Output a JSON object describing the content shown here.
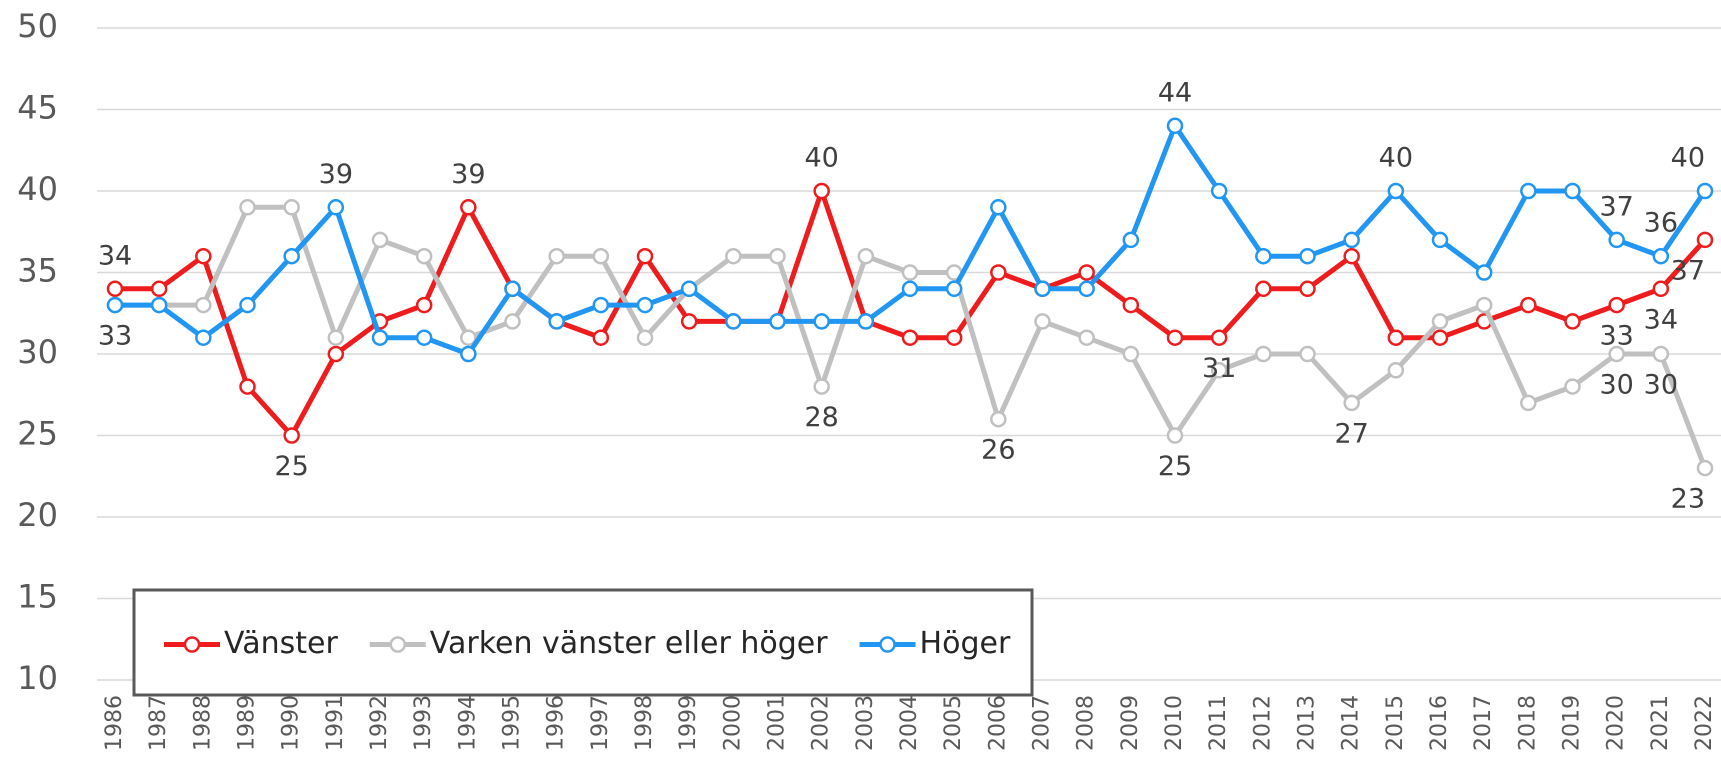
{
  "chart_data": {
    "type": "line",
    "categories": [
      "1986",
      "1987",
      "1988",
      "1989",
      "1990",
      "1991",
      "1992",
      "1993",
      "1994",
      "1995",
      "1996",
      "1997",
      "1998",
      "1999",
      "2000",
      "2001",
      "2002",
      "2003",
      "2004",
      "2005",
      "2006",
      "2007",
      "2008",
      "2009",
      "2010",
      "2011",
      "2012",
      "2013",
      "2014",
      "2015",
      "2016",
      "2017",
      "2018",
      "2019",
      "2020",
      "2021",
      "2022"
    ],
    "series": [
      {
        "name": "Vänster",
        "color": "#ee1c1c",
        "values": [
          34,
          34,
          36,
          28,
          25,
          30,
          32,
          33,
          39,
          34,
          32,
          31,
          36,
          32,
          32,
          32,
          40,
          32,
          31,
          31,
          35,
          34,
          35,
          33,
          31,
          31,
          34,
          34,
          36,
          31,
          31,
          32,
          33,
          32,
          33,
          34,
          37
        ],
        "value_labels": [
          "34",
          null,
          null,
          null,
          "25",
          null,
          null,
          null,
          "39",
          null,
          null,
          null,
          null,
          null,
          null,
          null,
          "40",
          null,
          null,
          null,
          null,
          null,
          null,
          null,
          null,
          "31",
          null,
          null,
          null,
          null,
          null,
          null,
          null,
          null,
          "33",
          "34",
          "37"
        ]
      },
      {
        "name": "Varken vänster eller höger",
        "color": "#c0c0c0",
        "values": [
          33,
          33,
          33,
          39,
          39,
          31,
          37,
          36,
          31,
          32,
          36,
          36,
          31,
          34,
          36,
          36,
          28,
          36,
          35,
          35,
          26,
          32,
          31,
          30,
          25,
          29,
          30,
          30,
          27,
          29,
          32,
          33,
          27,
          28,
          30,
          30,
          23
        ],
        "value_labels": [
          "33",
          null,
          null,
          null,
          null,
          null,
          null,
          null,
          null,
          null,
          null,
          null,
          null,
          null,
          null,
          null,
          "28",
          null,
          null,
          null,
          "26",
          null,
          null,
          null,
          "25",
          null,
          null,
          null,
          "27",
          null,
          null,
          null,
          null,
          null,
          "30",
          "30",
          "23"
        ]
      },
      {
        "name": "Höger",
        "color": "#2196f3",
        "values": [
          33,
          33,
          31,
          33,
          36,
          39,
          31,
          31,
          30,
          34,
          32,
          33,
          33,
          34,
          32,
          32,
          32,
          32,
          34,
          34,
          39,
          34,
          34,
          37,
          44,
          40,
          36,
          36,
          37,
          40,
          37,
          35,
          40,
          40,
          37,
          36,
          40
        ],
        "value_labels": [
          null,
          null,
          null,
          null,
          null,
          "39",
          null,
          null,
          null,
          null,
          null,
          null,
          null,
          null,
          null,
          null,
          null,
          null,
          null,
          null,
          null,
          null,
          null,
          null,
          "44",
          null,
          null,
          null,
          null,
          "40",
          null,
          null,
          null,
          null,
          "37",
          "36",
          "40"
        ]
      }
    ],
    "ylim": [
      10,
      50
    ],
    "yticks": [
      10,
      15,
      20,
      25,
      30,
      35,
      40,
      45,
      50
    ],
    "grid": true,
    "legend": "lower left"
  }
}
